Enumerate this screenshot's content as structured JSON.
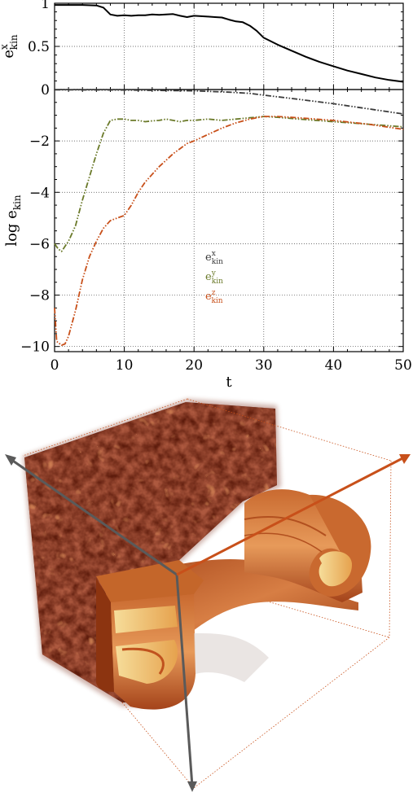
{
  "chart_data": [
    {
      "type": "line",
      "title": "",
      "ylabel": {
        "base": "e",
        "sup": "x",
        "sub": "kin"
      },
      "xlim": [
        0,
        50
      ],
      "ylim": [
        0,
        1
      ],
      "x_ticks": [
        0,
        10,
        20,
        30,
        40,
        50
      ],
      "y_ticks": [
        1,
        0.5,
        0
      ],
      "y_tick_labels": [
        "1",
        "0.5",
        ""
      ],
      "grid": true,
      "series": [
        {
          "color": "#000000",
          "style": "solid",
          "points": [
            [
              0,
              0.98
            ],
            [
              2,
              0.98
            ],
            [
              4,
              0.98
            ],
            [
              6,
              0.975
            ],
            [
              7,
              0.95
            ],
            [
              8,
              0.87
            ],
            [
              9,
              0.855
            ],
            [
              10,
              0.86
            ],
            [
              11,
              0.855
            ],
            [
              12,
              0.86
            ],
            [
              13,
              0.86
            ],
            [
              14,
              0.87
            ],
            [
              15,
              0.865
            ],
            [
              16,
              0.87
            ],
            [
              17,
              0.875
            ],
            [
              18,
              0.855
            ],
            [
              19,
              0.84
            ],
            [
              20,
              0.855
            ],
            [
              21,
              0.85
            ],
            [
              22,
              0.845
            ],
            [
              23,
              0.84
            ],
            [
              24,
              0.835
            ],
            [
              25,
              0.81
            ],
            [
              26,
              0.79
            ],
            [
              27,
              0.78
            ],
            [
              28,
              0.74
            ],
            [
              29,
              0.68
            ],
            [
              30,
              0.6
            ],
            [
              32,
              0.52
            ],
            [
              34,
              0.45
            ],
            [
              36,
              0.38
            ],
            [
              38,
              0.32
            ],
            [
              40,
              0.27
            ],
            [
              42,
              0.22
            ],
            [
              44,
              0.18
            ],
            [
              46,
              0.14
            ],
            [
              48,
              0.11
            ],
            [
              50,
              0.09
            ]
          ]
        }
      ]
    },
    {
      "type": "line",
      "title": "",
      "xlabel": "t",
      "ylabel": {
        "base": "log e",
        "sub": "kin"
      },
      "xlim": [
        0,
        50
      ],
      "ylim": [
        -10.2,
        0
      ],
      "x_ticks": [
        0,
        10,
        20,
        30,
        40,
        50
      ],
      "x_tick_labels": [
        "0",
        "10",
        "20",
        "30",
        "40",
        "50"
      ],
      "y_ticks": [
        0,
        -2,
        -4,
        -6,
        -8,
        -10
      ],
      "y_tick_labels": [
        "0",
        "−2",
        "−4",
        "−6",
        "−8",
        "−10"
      ],
      "grid": true,
      "legend": {
        "position": "center",
        "entries": [
          {
            "base": "e",
            "sup": "x",
            "sub": "kin",
            "color": "#3a3a3a"
          },
          {
            "base": "e",
            "sup": "y",
            "sub": "kin",
            "color": "#6b7a2a"
          },
          {
            "base": "e",
            "sup": "z",
            "sub": "kin",
            "color": "#c8501a"
          }
        ]
      },
      "series": [
        {
          "color": "#3a3a3a",
          "style": "dash-dot-dot",
          "points": [
            [
              0,
              -0.01
            ],
            [
              10,
              -0.02
            ],
            [
              20,
              -0.05
            ],
            [
              25,
              -0.1
            ],
            [
              28,
              -0.15
            ],
            [
              30,
              -0.22
            ],
            [
              35,
              -0.38
            ],
            [
              40,
              -0.55
            ],
            [
              45,
              -0.75
            ],
            [
              50,
              -0.95
            ]
          ]
        },
        {
          "color": "#6b7a2a",
          "style": "dash-dot-dot",
          "points": [
            [
              0,
              -6.0
            ],
            [
              0.5,
              -6.2
            ],
            [
              1,
              -6.3
            ],
            [
              1.5,
              -6.1
            ],
            [
              2,
              -5.9
            ],
            [
              3,
              -5.3
            ],
            [
              4,
              -4.3
            ],
            [
              5,
              -3.4
            ],
            [
              6,
              -2.5
            ],
            [
              7,
              -1.7
            ],
            [
              8,
              -1.2
            ],
            [
              9,
              -1.15
            ],
            [
              10,
              -1.15
            ],
            [
              11,
              -1.2
            ],
            [
              12,
              -1.2
            ],
            [
              13,
              -1.25
            ],
            [
              14,
              -1.22
            ],
            [
              15,
              -1.2
            ],
            [
              16,
              -1.15
            ],
            [
              17,
              -1.2
            ],
            [
              18,
              -1.25
            ],
            [
              19,
              -1.2
            ],
            [
              20,
              -1.2
            ],
            [
              22,
              -1.15
            ],
            [
              24,
              -1.2
            ],
            [
              26,
              -1.15
            ],
            [
              28,
              -1.1
            ],
            [
              30,
              -1.05
            ],
            [
              32,
              -1.08
            ],
            [
              35,
              -1.15
            ],
            [
              40,
              -1.25
            ],
            [
              45,
              -1.35
            ],
            [
              50,
              -1.45
            ]
          ]
        },
        {
          "color": "#c8501a",
          "style": "dash-dot-dot",
          "points": [
            [
              0,
              -8.5
            ],
            [
              0.3,
              -9.8
            ],
            [
              1,
              -9.95
            ],
            [
              1.5,
              -9.9
            ],
            [
              2,
              -9.6
            ],
            [
              3,
              -8.6
            ],
            [
              4,
              -7.4
            ],
            [
              5,
              -6.5
            ],
            [
              6,
              -5.9
            ],
            [
              7,
              -5.4
            ],
            [
              8,
              -5.1
            ],
            [
              9,
              -5.0
            ],
            [
              10,
              -4.9
            ],
            [
              11,
              -4.5
            ],
            [
              12,
              -4.0
            ],
            [
              13,
              -3.6
            ],
            [
              14,
              -3.3
            ],
            [
              15,
              -3.0
            ],
            [
              16,
              -2.75
            ],
            [
              17,
              -2.5
            ],
            [
              18,
              -2.3
            ],
            [
              19,
              -2.1
            ],
            [
              20,
              -2.0
            ],
            [
              22,
              -1.75
            ],
            [
              24,
              -1.5
            ],
            [
              26,
              -1.3
            ],
            [
              28,
              -1.15
            ],
            [
              30,
              -1.05
            ],
            [
              32,
              -1.05
            ],
            [
              35,
              -1.1
            ],
            [
              40,
              -1.2
            ],
            [
              45,
              -1.35
            ],
            [
              50,
              -1.55
            ]
          ]
        }
      ]
    }
  ]
}
